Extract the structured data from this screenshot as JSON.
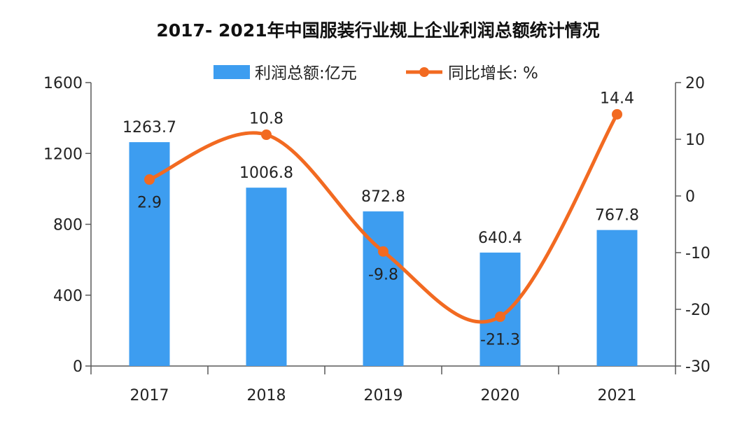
{
  "chart_data": {
    "type": "bar+line",
    "title": "2017- 2021年中国服装行业规上企业利润总额统计情况",
    "categories": [
      "2017",
      "2018",
      "2019",
      "2020",
      "2021"
    ],
    "series": [
      {
        "name": "利润总额:亿元",
        "type": "bar",
        "axis": "left",
        "color": "#3d9df0",
        "values": [
          1263.7,
          1006.8,
          872.8,
          640.4,
          767.8
        ]
      },
      {
        "name": "同比增长: %",
        "type": "line",
        "axis": "right",
        "color": "#f26a21",
        "values": [
          2.9,
          10.8,
          -9.8,
          -21.3,
          14.4
        ]
      }
    ],
    "left_axis": {
      "ylim": [
        0,
        1600
      ],
      "ticks": [
        0,
        400,
        800,
        1200,
        1600
      ]
    },
    "right_axis": {
      "ylim": [
        -30,
        20
      ],
      "ticks": [
        -30,
        -20,
        -10,
        0,
        10,
        20
      ]
    },
    "legend_position": "top",
    "grid": false
  }
}
